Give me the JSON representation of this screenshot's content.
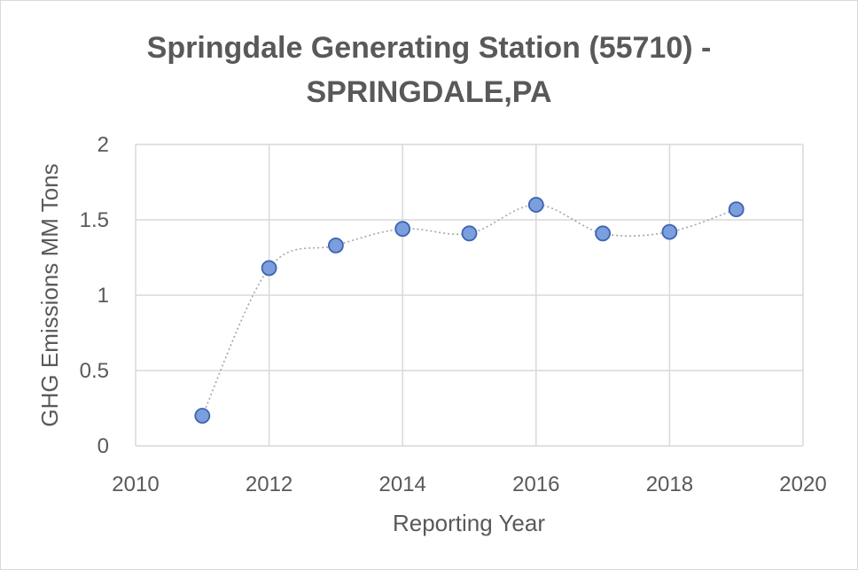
{
  "chart_data": {
    "type": "scatter",
    "title_line1": "Springdale Generating Station (55710) -",
    "title_line2": "SPRINGDALE,PA",
    "xlabel": "Reporting Year",
    "ylabel": "GHG Emissions MM Tons",
    "xlim": [
      2010,
      2020
    ],
    "ylim": [
      0,
      2
    ],
    "x_ticks": [
      2010,
      2012,
      2014,
      2016,
      2018,
      2020
    ],
    "x_tick_labels": [
      "2010",
      "2012",
      "2014",
      "2016",
      "2018",
      "2020"
    ],
    "y_ticks": [
      0,
      0.5,
      1,
      1.5,
      2
    ],
    "y_tick_labels": [
      "0",
      "0.5",
      "1",
      "1.5",
      "2"
    ],
    "grid": true,
    "smoothed_line": true,
    "series": [
      {
        "name": "GHG Emissions",
        "x": [
          2011,
          2012,
          2013,
          2014,
          2015,
          2016,
          2017,
          2018,
          2019
        ],
        "y": [
          0.2,
          1.18,
          1.33,
          1.44,
          1.41,
          1.6,
          1.41,
          1.42,
          1.57
        ]
      }
    ],
    "colors": {
      "marker_fill": "#7b9fde",
      "marker_stroke": "#3f63b0",
      "line": "#a6a6a6",
      "grid": "#d9d9d9",
      "text": "#595959"
    }
  }
}
